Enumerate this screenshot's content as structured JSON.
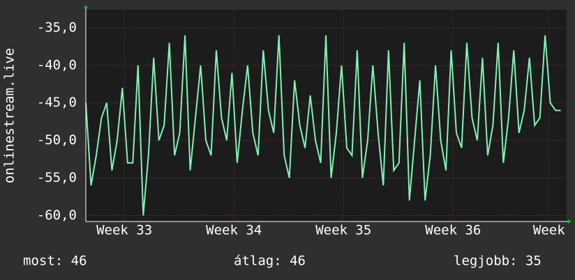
{
  "chart_data": {
    "type": "line",
    "y_label": "onlinestream.live",
    "x": [
      0,
      8,
      16,
      24,
      32,
      40,
      48,
      56,
      64,
      72,
      80,
      88,
      96,
      104,
      112,
      120,
      128,
      136,
      144,
      152,
      160,
      168,
      176,
      184,
      192,
      200,
      208,
      216,
      224,
      232,
      240,
      248,
      256,
      264,
      272,
      280,
      288,
      296,
      304,
      312,
      320,
      328,
      336,
      344,
      352,
      360,
      368,
      376,
      384,
      392,
      400,
      408,
      416,
      424,
      432,
      440,
      448,
      456,
      464,
      472,
      480,
      488,
      496,
      504,
      512,
      520,
      528,
      536,
      544,
      552,
      560,
      568,
      576,
      584,
      592,
      600,
      608,
      616,
      624,
      632,
      640,
      648,
      656,
      664,
      672,
      680,
      688,
      696,
      704,
      712,
      720,
      728
    ],
    "series": [
      {
        "name": "onlinestream.live",
        "color": "#80f2b4",
        "values": [
          -45,
          -56,
          -52,
          -47,
          -45,
          -54,
          -50,
          -43,
          -53,
          -53,
          -40,
          -60,
          -52,
          -39,
          -50,
          -48,
          -37,
          -52,
          -49,
          -36,
          -54,
          -47,
          -40,
          -50,
          -52,
          -38,
          -47,
          -50,
          -41,
          -53,
          -46,
          -40,
          -49,
          -52,
          -38,
          -46,
          -49,
          -36,
          -52,
          -55,
          -42,
          -48,
          -51,
          -44,
          -50,
          -53,
          -36,
          -55,
          -49,
          -40,
          -51,
          -52,
          -38,
          -55,
          -50,
          -40,
          -49,
          -56,
          -38,
          -54,
          -53,
          -37,
          -58,
          -50,
          -42,
          -58,
          -52,
          -40,
          -50,
          -54,
          -38,
          -49,
          -51,
          -37,
          -47,
          -50,
          -39,
          -52,
          -48,
          -37,
          -53,
          -47,
          -38,
          -49,
          -46,
          -39,
          -48,
          -47,
          -36,
          -45,
          -46,
          -46
        ]
      }
    ],
    "xlim": [
      0,
      737
    ],
    "xticks": [
      {
        "value": 59,
        "label": "Week 33"
      },
      {
        "value": 227,
        "label": "Week 34"
      },
      {
        "value": 395,
        "label": "Week 35"
      },
      {
        "value": 563,
        "label": "Week 36"
      },
      {
        "value": 710,
        "label": "Week"
      }
    ],
    "ylim": [
      -60.8,
      -32.6
    ],
    "yticks": [
      {
        "value": -60,
        "label": "-60,0"
      },
      {
        "value": -55,
        "label": "-55,0"
      },
      {
        "value": -50,
        "label": "-50,0"
      },
      {
        "value": -45,
        "label": "-45,0"
      },
      {
        "value": -40,
        "label": "-40,0"
      },
      {
        "value": -35,
        "label": "-35,0"
      }
    ],
    "grid": true,
    "footer": [
      "most: 46",
      "átlag: 46",
      "legjobb: 35"
    ]
  }
}
